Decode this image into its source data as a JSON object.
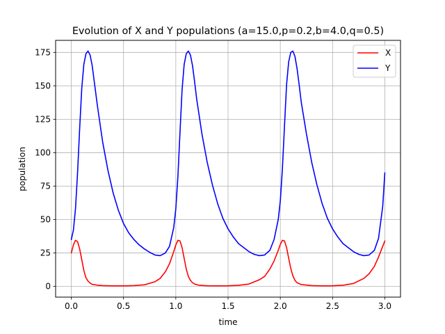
{
  "chart_data": {
    "type": "line",
    "title": "Evolution of X and Y populations (a=15.0,p=0.2,b=4.0,q=0.5)",
    "xlabel": "time",
    "ylabel": "population",
    "xlim": [
      -0.15,
      3.15
    ],
    "ylim": [
      -8,
      184
    ],
    "xticks": [
      0.0,
      0.5,
      1.0,
      1.5,
      2.0,
      2.5,
      3.0
    ],
    "xtick_labels": [
      "0.0",
      "0.5",
      "1.0",
      "1.5",
      "2.0",
      "2.5",
      "3.0"
    ],
    "yticks": [
      0,
      25,
      50,
      75,
      100,
      125,
      150,
      175
    ],
    "ytick_labels": [
      "0",
      "25",
      "50",
      "75",
      "100",
      "125",
      "150",
      "175"
    ],
    "grid": true,
    "legend_position": "top-right",
    "series": [
      {
        "name": "X",
        "color": "#ff0000",
        "x": [
          0.0,
          0.02,
          0.04,
          0.06,
          0.08,
          0.1,
          0.12,
          0.14,
          0.16,
          0.18,
          0.2,
          0.25,
          0.3,
          0.4,
          0.5,
          0.6,
          0.7,
          0.8,
          0.85,
          0.9,
          0.94,
          0.98,
          1.0,
          1.02,
          1.04,
          1.06,
          1.08,
          1.1,
          1.12,
          1.14,
          1.16,
          1.18,
          1.22,
          1.3,
          1.4,
          1.5,
          1.6,
          1.7,
          1.8,
          1.85,
          1.9,
          1.94,
          1.98,
          2.0,
          2.02,
          2.04,
          2.06,
          2.08,
          2.1,
          2.12,
          2.14,
          2.16,
          2.2,
          2.3,
          2.4,
          2.5,
          2.6,
          2.7,
          2.8,
          2.85,
          2.9,
          2.94,
          2.98,
          3.0
        ],
        "y": [
          25.0,
          31.0,
          34.5,
          33.5,
          28.0,
          20.0,
          12.0,
          6.5,
          4.0,
          2.5,
          1.6,
          0.9,
          0.6,
          0.4,
          0.4,
          0.6,
          1.2,
          3.5,
          6.0,
          11.0,
          17.0,
          26.0,
          31.0,
          34.5,
          34.0,
          29.0,
          21.0,
          13.0,
          7.5,
          4.5,
          2.8,
          1.8,
          0.9,
          0.5,
          0.4,
          0.5,
          0.8,
          1.8,
          5.0,
          7.5,
          13.0,
          19.0,
          27.0,
          31.5,
          34.5,
          34.0,
          29.0,
          21.0,
          13.5,
          8.0,
          4.5,
          2.8,
          1.4,
          0.6,
          0.4,
          0.5,
          0.9,
          2.2,
          6.0,
          9.5,
          15.0,
          22.0,
          30.0,
          34.0
        ]
      },
      {
        "name": "Y",
        "color": "#0000ff",
        "x": [
          0.0,
          0.02,
          0.04,
          0.06,
          0.08,
          0.1,
          0.12,
          0.14,
          0.16,
          0.18,
          0.2,
          0.22,
          0.25,
          0.3,
          0.35,
          0.4,
          0.45,
          0.5,
          0.55,
          0.6,
          0.65,
          0.7,
          0.75,
          0.8,
          0.85,
          0.9,
          0.94,
          0.98,
          1.0,
          1.02,
          1.04,
          1.06,
          1.08,
          1.1,
          1.12,
          1.14,
          1.16,
          1.18,
          1.2,
          1.25,
          1.3,
          1.35,
          1.4,
          1.45,
          1.5,
          1.55,
          1.6,
          1.65,
          1.7,
          1.75,
          1.8,
          1.85,
          1.9,
          1.94,
          1.98,
          2.0,
          2.02,
          2.04,
          2.06,
          2.08,
          2.1,
          2.12,
          2.14,
          2.16,
          2.18,
          2.2,
          2.25,
          2.3,
          2.35,
          2.4,
          2.45,
          2.5,
          2.55,
          2.6,
          2.65,
          2.7,
          2.75,
          2.8,
          2.85,
          2.9,
          2.94,
          2.98,
          3.0
        ],
        "y": [
          35,
          42,
          58,
          85,
          118,
          148,
          166,
          174,
          176,
          173,
          165,
          153,
          135,
          108,
          87,
          70,
          57,
          47,
          40,
          35,
          31,
          28,
          25.5,
          23.5,
          23,
          25,
          30,
          44,
          58,
          82,
          115,
          147,
          166,
          174,
          176,
          173,
          165,
          153,
          140,
          114,
          93,
          76,
          62,
          51,
          43,
          37,
          32,
          29,
          26,
          24,
          23,
          23.5,
          27,
          35,
          50,
          64,
          88,
          120,
          151,
          168,
          175,
          176,
          172,
          163,
          151,
          138,
          114,
          93,
          76,
          62,
          51,
          43,
          37,
          32,
          29,
          26,
          24,
          23,
          23.5,
          27,
          36,
          60,
          85
        ]
      }
    ]
  }
}
